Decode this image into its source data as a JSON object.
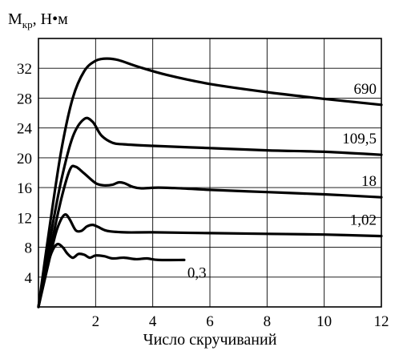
{
  "chart_data": {
    "type": "line",
    "ylabel_main": "М",
    "ylabel_sub": "кр",
    "ylabel_unit": ", Н•м",
    "xlabel": "Число скручиваний",
    "xlim": [
      0,
      12
    ],
    "ylim": [
      0,
      36
    ],
    "xticks": [
      2,
      4,
      6,
      8,
      10,
      12
    ],
    "yticks": [
      4,
      8,
      12,
      16,
      20,
      24,
      28,
      32
    ],
    "grid": true,
    "series": [
      {
        "name": "690",
        "points": [
          [
            0,
            0
          ],
          [
            0.4,
            11
          ],
          [
            0.8,
            21
          ],
          [
            1.2,
            28
          ],
          [
            1.6,
            31.6
          ],
          [
            2.0,
            33
          ],
          [
            2.4,
            33.3
          ],
          [
            2.8,
            33.1
          ],
          [
            3.5,
            32.2
          ],
          [
            4.5,
            31.1
          ],
          [
            6,
            29.9
          ],
          [
            8,
            28.8
          ],
          [
            10,
            27.9
          ],
          [
            12,
            27.1
          ]
        ]
      },
      {
        "name": "109,5",
        "points": [
          [
            0,
            0
          ],
          [
            0.4,
            9
          ],
          [
            0.8,
            17
          ],
          [
            1.2,
            22.8
          ],
          [
            1.6,
            25.2
          ],
          [
            1.9,
            24.8
          ],
          [
            2.2,
            23
          ],
          [
            2.6,
            22
          ],
          [
            3,
            21.8
          ],
          [
            4,
            21.6
          ],
          [
            6,
            21.3
          ],
          [
            8,
            21.0
          ],
          [
            10,
            20.8
          ],
          [
            12,
            20.4
          ]
        ]
      },
      {
        "name": "18",
        "points": [
          [
            0,
            0
          ],
          [
            0.4,
            7.5
          ],
          [
            0.8,
            14.5
          ],
          [
            1.1,
            18.4
          ],
          [
            1.3,
            18.8
          ],
          [
            1.6,
            17.9
          ],
          [
            2.0,
            16.6
          ],
          [
            2.3,
            16.3
          ],
          [
            2.6,
            16.4
          ],
          [
            2.8,
            16.7
          ],
          [
            3.0,
            16.6
          ],
          [
            3.3,
            16.1
          ],
          [
            3.6,
            15.9
          ],
          [
            4.2,
            16.0
          ],
          [
            5,
            15.9
          ],
          [
            6,
            15.7
          ],
          [
            8,
            15.4
          ],
          [
            10,
            15.1
          ],
          [
            12,
            14.7
          ]
        ]
      },
      {
        "name": "1,02",
        "points": [
          [
            0,
            0
          ],
          [
            0.3,
            5
          ],
          [
            0.6,
            9.8
          ],
          [
            0.8,
            11.8
          ],
          [
            0.95,
            12.4
          ],
          [
            1.1,
            11.7
          ],
          [
            1.3,
            10.3
          ],
          [
            1.5,
            10.2
          ],
          [
            1.7,
            10.8
          ],
          [
            1.9,
            11.0
          ],
          [
            2.1,
            10.7
          ],
          [
            2.4,
            10.2
          ],
          [
            3,
            10.0
          ],
          [
            4,
            10.0
          ],
          [
            6,
            9.9
          ],
          [
            8,
            9.8
          ],
          [
            10,
            9.7
          ],
          [
            12,
            9.5
          ]
        ]
      },
      {
        "name": "0,3",
        "points": [
          [
            0,
            0
          ],
          [
            0.2,
            4
          ],
          [
            0.45,
            7.2
          ],
          [
            0.65,
            8.4
          ],
          [
            0.85,
            8.0
          ],
          [
            1.0,
            7.2
          ],
          [
            1.2,
            6.6
          ],
          [
            1.4,
            7.1
          ],
          [
            1.6,
            7.0
          ],
          [
            1.8,
            6.6
          ],
          [
            2.0,
            6.9
          ],
          [
            2.3,
            6.8
          ],
          [
            2.6,
            6.5
          ],
          [
            3.0,
            6.6
          ],
          [
            3.4,
            6.4
          ],
          [
            3.8,
            6.5
          ],
          [
            4.2,
            6.3
          ],
          [
            5.1,
            6.3
          ]
        ]
      }
    ]
  }
}
